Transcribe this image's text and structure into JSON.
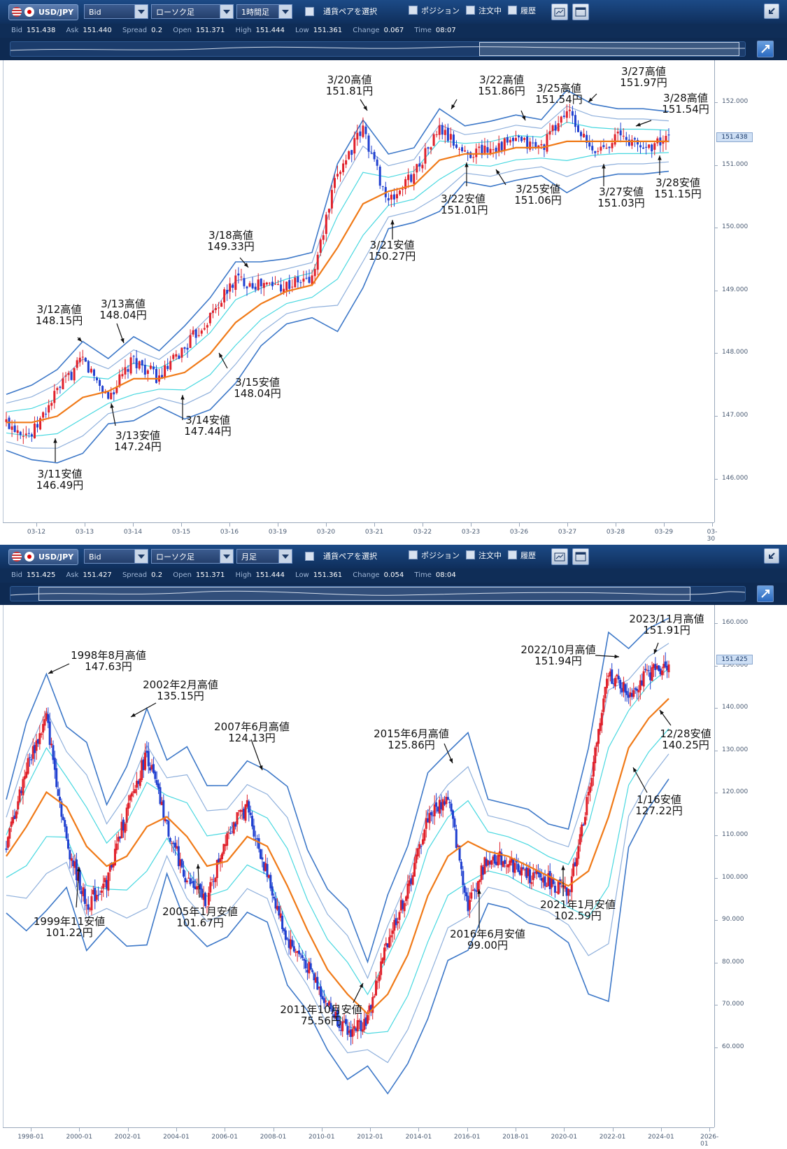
{
  "panels": [
    {
      "toolbar": {
        "pair": "USD/JPY",
        "price_side": "Bid",
        "chart_type": "ローソク足",
        "timeframe": "1時間足",
        "pair_select_label": "通貨ペアを選択",
        "chk_position": "ポジション",
        "chk_orders": "注文中",
        "chk_history": "履歴"
      },
      "quote": {
        "bid_label": "Bid",
        "bid": "151.438",
        "ask_label": "Ask",
        "ask": "151.440",
        "spread_label": "Spread",
        "spread": "0.2",
        "open_label": "Open",
        "open": "151.371",
        "high_label": "High",
        "high": "151.444",
        "low_label": "Low",
        "low": "151.361",
        "change_label": "Change",
        "change": "0.067",
        "time_label": "Time",
        "time": "08:07"
      },
      "last_price": "151.438",
      "y_ticks": [
        "152.000",
        "151.000",
        "150.000",
        "149.000",
        "148.000",
        "147.000",
        "146.000"
      ],
      "x_ticks": [
        "03-12",
        "03-13",
        "03-14",
        "03-15",
        "03-16",
        "03-19",
        "03-20",
        "03-21",
        "03-22",
        "03-23",
        "03-26",
        "03-27",
        "03-28",
        "03-29",
        "03-30"
      ],
      "annotations": [
        "3/12高値\n148.15円",
        "3/13高値\n148.04円",
        "3/11安値\n146.49円",
        "3/13安値\n147.24円",
        "3/14安値\n147.44円",
        "3/15安値\n148.04円",
        "3/18高値\n149.33円",
        "3/20高値\n151.81円",
        "3/21安値\n150.27円",
        "3/22高値\n151.86円",
        "3/22安値\n151.01円",
        "3/25高値\n151.54円",
        "3/25安値\n151.06円",
        "3/27高値\n151.97円",
        "3/27安値\n151.03円",
        "3/28高値\n151.54円",
        "3/28安値\n151.15円"
      ]
    },
    {
      "toolbar": {
        "pair": "USD/JPY",
        "price_side": "Bid",
        "chart_type": "ローソク足",
        "timeframe": "月足",
        "pair_select_label": "通貨ペアを選択",
        "chk_position": "ポジション",
        "chk_orders": "注文中",
        "chk_history": "履歴"
      },
      "quote": {
        "bid_label": "Bid",
        "bid": "151.425",
        "ask_label": "Ask",
        "ask": "151.427",
        "spread_label": "Spread",
        "spread": "0.2",
        "open_label": "Open",
        "open": "151.371",
        "high_label": "High",
        "high": "151.444",
        "low_label": "Low",
        "low": "151.361",
        "change_label": "Change",
        "change": "0.054",
        "time_label": "Time",
        "time": "08:04"
      },
      "last_price": "151.425",
      "y_ticks": [
        "160.000",
        "150.000",
        "140.000",
        "130.000",
        "120.000",
        "110.000",
        "100.000",
        "90.000",
        "80.000",
        "70.000",
        "60.000"
      ],
      "x_ticks": [
        "1998-01",
        "2000-01",
        "2002-01",
        "2004-01",
        "2006-01",
        "2008-01",
        "2010-01",
        "2012-01",
        "2014-01",
        "2016-01",
        "2018-01",
        "2020-01",
        "2022-01",
        "2024-01",
        "2026-01"
      ],
      "annotations": [
        "1998年8月高値\n147.63円",
        "2002年2月高値\n135.15円",
        "2007年6月高値\n124.13円",
        "1999年11安値\n101.22円",
        "2005年1月安値\n101.67円",
        "2011年10月安値\n75.56円",
        "2015年6月高値\n125.86円",
        "2016年6月安値\n99.00円",
        "2021年1月安値\n102.59円",
        "2022/10月高値\n151.94円",
        "2023/11月高値\n151.91円",
        "12/28安値\n140.25円",
        "1/16安値\n127.22円"
      ]
    }
  ],
  "chart_data": [
    {
      "type": "candlestick",
      "title": "USD/JPY 1時間足",
      "x_ticks": [
        "03-12",
        "03-13",
        "03-14",
        "03-15",
        "03-16",
        "03-19",
        "03-20",
        "03-21",
        "03-22",
        "03-23",
        "03-26",
        "03-27",
        "03-28",
        "03-29",
        "03-30"
      ],
      "ylim": [
        145.3,
        152.7
      ],
      "series": [
        {
          "name": "close",
          "x": [
            "03-11",
            "03-12",
            "03-12",
            "03-13",
            "03-13",
            "03-14",
            "03-14",
            "03-15",
            "03-15",
            "03-16",
            "03-16",
            "03-19",
            "03-19",
            "03-20",
            "03-20",
            "03-21",
            "03-21",
            "03-22",
            "03-22",
            "03-23",
            "03-26",
            "03-26",
            "03-27",
            "03-27",
            "03-28",
            "03-28",
            "03-29"
          ],
          "values": [
            146.9,
            146.7,
            147.4,
            147.9,
            147.3,
            147.9,
            147.6,
            148.1,
            148.6,
            149.2,
            149.1,
            149.1,
            149.2,
            150.9,
            151.6,
            150.4,
            150.9,
            151.6,
            151.2,
            151.3,
            151.4,
            151.3,
            151.9,
            151.2,
            151.5,
            151.3,
            151.44
          ]
        },
        {
          "name": "MA",
          "values": [
            146.9,
            146.9,
            147.0,
            147.3,
            147.4,
            147.6,
            147.6,
            147.7,
            148.0,
            148.5,
            148.8,
            149.0,
            149.1,
            149.7,
            150.4,
            150.6,
            150.7,
            151.1,
            151.2,
            151.2,
            151.3,
            151.3,
            151.4,
            151.4,
            151.4,
            151.4,
            151.4
          ]
        }
      ],
      "lows": [
        {
          "x": "03-11",
          "value": 146.49
        },
        {
          "x": "03-13",
          "value": 147.24
        },
        {
          "x": "03-14",
          "value": 147.44
        },
        {
          "x": "03-15",
          "value": 148.04
        },
        {
          "x": "03-21",
          "value": 150.27
        },
        {
          "x": "03-22",
          "value": 151.01
        },
        {
          "x": "03-25",
          "value": 151.06
        },
        {
          "x": "03-27",
          "value": 151.03
        },
        {
          "x": "03-28",
          "value": 151.15
        }
      ],
      "highs": [
        {
          "x": "03-12",
          "value": 148.15
        },
        {
          "x": "03-13",
          "value": 148.04
        },
        {
          "x": "03-18",
          "value": 149.33
        },
        {
          "x": "03-20",
          "value": 151.81
        },
        {
          "x": "03-22",
          "value": 151.86
        },
        {
          "x": "03-25",
          "value": 151.54
        },
        {
          "x": "03-27",
          "value": 151.97
        },
        {
          "x": "03-28",
          "value": 151.54
        }
      ]
    },
    {
      "type": "candlestick",
      "title": "USD/JPY 月足",
      "x_ticks": [
        "1998-01",
        "2000-01",
        "2002-01",
        "2004-01",
        "2006-01",
        "2008-01",
        "2010-01",
        "2012-01",
        "2014-01",
        "2016-01",
        "2018-01",
        "2020-01",
        "2022-01",
        "2024-01",
        "2026-01"
      ],
      "ylim": [
        57,
        163
      ],
      "series": [
        {
          "name": "close",
          "x": [
            1997,
            1998,
            1998.6,
            1999,
            1999.9,
            2000.5,
            2001.5,
            2002.1,
            2003,
            2004,
            2005.1,
            2006,
            2007.5,
            2008,
            2008.8,
            2010,
            2011,
            2011.8,
            2012.5,
            2013.2,
            2014,
            2015,
            2015.5,
            2016.5,
            2017,
            2018,
            2019,
            2020,
            2021,
            2022,
            2022.8,
            2023.5,
            2023.9,
            2024.2
          ],
          "values": [
            114,
            130,
            140,
            115,
            102,
            107,
            121,
            133,
            118,
            107,
            103,
            117,
            122,
            108,
            95,
            90,
            82,
            76,
            79,
            95,
            105,
            120,
            124,
            102,
            112,
            111,
            108,
            107,
            104,
            125,
            149,
            145,
            149,
            151
          ]
        },
        {
          "name": "MA",
          "values": [
            112,
            118,
            125,
            122,
            114,
            110,
            112,
            118,
            120,
            116,
            110,
            111,
            116,
            114,
            106,
            97,
            89,
            84,
            80,
            84,
            92,
            104,
            112,
            115,
            113,
            112,
            110,
            108,
            106,
            109,
            120,
            134,
            140,
            144
          ]
        }
      ],
      "lows": [
        {
          "x": "1999-11",
          "value": 101.22
        },
        {
          "x": "2005-01",
          "value": 101.67
        },
        {
          "x": "2011-10",
          "value": 75.56
        },
        {
          "x": "2016-06",
          "value": 99.0
        },
        {
          "x": "2021-01",
          "value": 102.59
        },
        {
          "x": "2023-12",
          "value": 140.25
        },
        {
          "x": "2023-01",
          "value": 127.22
        }
      ],
      "highs": [
        {
          "x": "1998-08",
          "value": 147.63
        },
        {
          "x": "2002-02",
          "value": 135.15
        },
        {
          "x": "2007-06",
          "value": 124.13
        },
        {
          "x": "2015-06",
          "value": 125.86
        },
        {
          "x": "2022-10",
          "value": 151.94
        },
        {
          "x": "2023-11",
          "value": 151.91
        }
      ]
    }
  ]
}
